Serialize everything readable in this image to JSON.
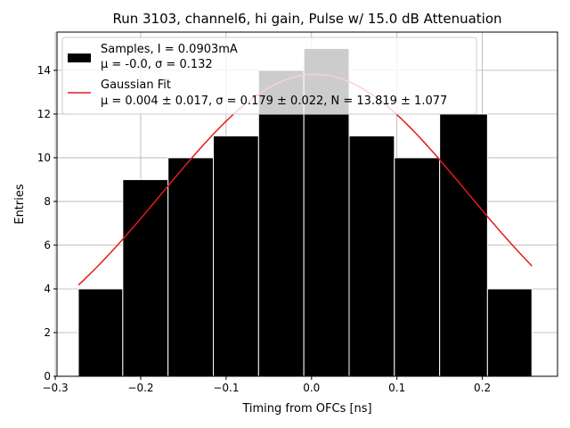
{
  "chart_data": {
    "type": "bar",
    "title": "Run 3103, channel6, hi gain, Pulse w/ 15.0 dB Attenuation",
    "xlabel": "Timing from OFCs [ns]",
    "ylabel": "Entries",
    "xlim": [
      -0.298,
      0.288
    ],
    "ylim": [
      0,
      15.75
    ],
    "grid": true,
    "legend_position": "top-left",
    "xticks": [
      {
        "value": -0.3,
        "label": "−0.3"
      },
      {
        "value": -0.2,
        "label": "−0.2"
      },
      {
        "value": -0.1,
        "label": "−0.1"
      },
      {
        "value": 0.0,
        "label": "0.0"
      },
      {
        "value": 0.1,
        "label": "0.1"
      },
      {
        "value": 0.2,
        "label": "0.2"
      }
    ],
    "yticks": [
      {
        "value": 0,
        "label": "0"
      },
      {
        "value": 2,
        "label": "2"
      },
      {
        "value": 4,
        "label": "4"
      },
      {
        "value": 6,
        "label": "6"
      },
      {
        "value": 8,
        "label": "8"
      },
      {
        "value": 10,
        "label": "10"
      },
      {
        "value": 12,
        "label": "12"
      },
      {
        "value": 14,
        "label": "14"
      }
    ],
    "histogram": {
      "bin_edges": [
        -0.273,
        -0.221,
        -0.168,
        -0.115,
        -0.062,
        -0.009,
        0.044,
        0.097,
        0.15,
        0.206,
        0.258
      ],
      "counts": [
        4,
        9,
        10,
        11,
        14,
        15,
        11,
        10,
        12,
        4
      ],
      "color": "#000000",
      "edgecolor": "#ffffff"
    },
    "fit": {
      "mu": 0.004,
      "sigma": 0.179,
      "N": 13.819,
      "x_range": [
        -0.273,
        0.258
      ],
      "color": "#e41a1c"
    },
    "legend": {
      "entries": [
        {
          "marker": "bar",
          "line1": "Samples, I = 0.0903mA",
          "line2": "μ = -0.0, σ = 0.132"
        },
        {
          "marker": "line",
          "line1": "Gaussian Fit",
          "line2": "μ = 0.004 ± 0.017, σ = 0.179 ± 0.022, N = 13.819 ± 1.077"
        }
      ]
    }
  }
}
